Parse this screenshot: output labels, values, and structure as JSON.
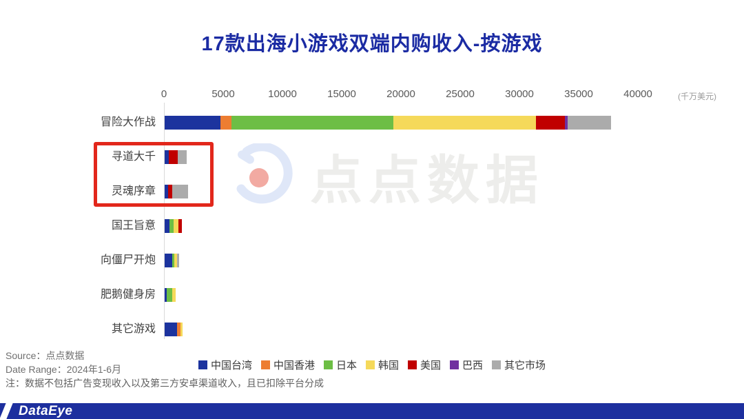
{
  "title": "17款出海小游戏双端内购收入-按游戏",
  "chart_data": {
    "type": "bar",
    "orientation": "horizontal",
    "stacked": true,
    "title": "17款出海小游戏双端内购收入-按游戏",
    "unit_label": "(千万美元)",
    "x_ticks": [
      0,
      5000,
      10000,
      15000,
      20000,
      25000,
      30000,
      35000,
      40000
    ],
    "xlim": [
      0,
      40000
    ],
    "grid": false,
    "legend_position": "bottom",
    "categories": [
      "冒险大作战",
      "寻道大千",
      "灵魂序章",
      "国王旨意",
      "向僵尸开炮",
      "肥鹅健身房",
      "其它游戏"
    ],
    "series": [
      {
        "name": "中国台湾",
        "color": "#1c339e",
        "values": [
          4700,
          350,
          300,
          420,
          660,
          175,
          1040
        ]
      },
      {
        "name": "中国香港",
        "color": "#ed7d31",
        "values": [
          950,
          0,
          0,
          0,
          0,
          0,
          300
        ]
      },
      {
        "name": "日本",
        "color": "#6dbe45",
        "values": [
          13650,
          0,
          0,
          350,
          180,
          480,
          0
        ]
      },
      {
        "name": "韩国",
        "color": "#f5d95a",
        "values": [
          12050,
          0,
          0,
          370,
          220,
          280,
          200
        ]
      },
      {
        "name": "美国",
        "color": "#c00000",
        "values": [
          2450,
          780,
          320,
          290,
          0,
          0,
          0
        ]
      },
      {
        "name": "巴西",
        "color": "#7030a0",
        "values": [
          230,
          0,
          0,
          0,
          0,
          0,
          0
        ]
      },
      {
        "name": "其它市场",
        "color": "#ababab",
        "values": [
          3650,
          720,
          1370,
          0,
          190,
          0,
          0
        ]
      }
    ],
    "highlighted_categories": [
      "寻道大千",
      "灵魂序章"
    ],
    "highlight_box_color": "#e2271b"
  },
  "watermark": {
    "logo": "diandian-data-logo",
    "text": "点点数据",
    "logo_blue": "#dfe7f8",
    "logo_red": "#f2aaa2"
  },
  "footer": {
    "source_label": "Source：",
    "source_value": "点点数据",
    "range_label": "Date Range：",
    "range_value": "2024年1-6月",
    "note": "注：数据不包括广告变现收入以及第三方安卓渠道收入，且已扣除平台分成"
  },
  "bottom_bar": {
    "brand": "DataEye",
    "color": "#1d2f9e"
  }
}
